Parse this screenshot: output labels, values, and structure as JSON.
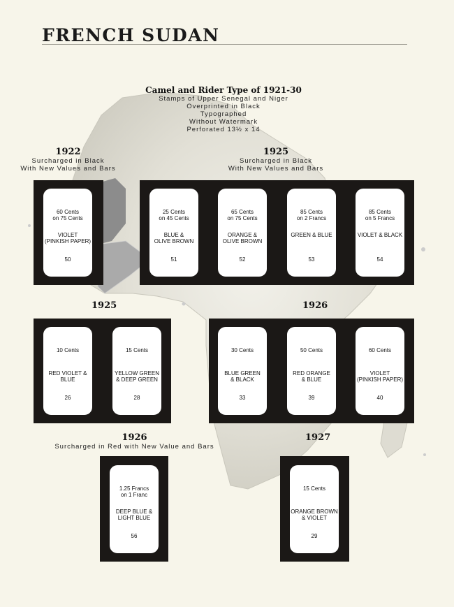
{
  "page": {
    "title": "FRENCH SUDAN",
    "series_title": "Camel and Rider Type of 1921-30",
    "series_lines": [
      "Stamps of Upper Senegal and Niger",
      "Overprinted in Black",
      "Typographed",
      "Without Watermark",
      "Perforated 13½ x 14"
    ]
  },
  "colors": {
    "background": "#f7f5ea",
    "block": "#1b1816",
    "map_light": "#dedcd2",
    "map_dark": "#8c8c8c"
  },
  "sections": [
    {
      "year": "1922",
      "lines": [
        "Surcharged in Black",
        "With New Values and Bars"
      ]
    },
    {
      "year": "1925",
      "lines": [
        "Surcharged in Black",
        "With New Values and Bars"
      ]
    },
    {
      "year": "1925",
      "lines": []
    },
    {
      "year": "1926",
      "lines": []
    },
    {
      "year": "1926",
      "lines": [
        "Surcharged in Red with New Value and Bars"
      ]
    },
    {
      "year": "1927",
      "lines": []
    }
  ],
  "stamps": [
    {
      "denom": [
        "60 Cents",
        "on 75 Cents"
      ],
      "color": [
        "VIOLET",
        "(PINKISH PAPER)"
      ],
      "number": "50"
    },
    {
      "denom": [
        "25 Cents",
        "on 45 Cents"
      ],
      "color": [
        "BLUE &",
        "OLIVE BROWN"
      ],
      "number": "51"
    },
    {
      "denom": [
        "65 Cents",
        "on 75 Cents"
      ],
      "color": [
        "ORANGE &",
        "OLIVE BROWN"
      ],
      "number": "52"
    },
    {
      "denom": [
        "85 Cents",
        "on 2 Francs"
      ],
      "color": [
        "GREEN & BLUE",
        ""
      ],
      "number": "53"
    },
    {
      "denom": [
        "85 Cents",
        "on 5 Francs"
      ],
      "color": [
        "VIOLET & BLACK",
        ""
      ],
      "number": "54"
    },
    {
      "denom": [
        "10 Cents",
        ""
      ],
      "color": [
        "RED VIOLET &",
        "BLUE"
      ],
      "number": "26"
    },
    {
      "denom": [
        "15 Cents",
        ""
      ],
      "color": [
        "YELLOW GREEN",
        "& DEEP GREEN"
      ],
      "number": "28"
    },
    {
      "denom": [
        "30 Cents",
        ""
      ],
      "color": [
        "BLUE GREEN",
        "& BLACK"
      ],
      "number": "33"
    },
    {
      "denom": [
        "50 Cents",
        ""
      ],
      "color": [
        "RED ORANGE",
        "& BLUE"
      ],
      "number": "39"
    },
    {
      "denom": [
        "60 Cents",
        ""
      ],
      "color": [
        "VIOLET",
        "(PINKISH PAPER)"
      ],
      "number": "40"
    },
    {
      "denom": [
        "1.25 Francs",
        "on 1 Franc"
      ],
      "color": [
        "DEEP BLUE &",
        "LIGHT BLUE"
      ],
      "number": "56"
    },
    {
      "denom": [
        "15 Cents",
        ""
      ],
      "color": [
        "ORANGE BROWN",
        "& VIOLET"
      ],
      "number": "29"
    }
  ]
}
